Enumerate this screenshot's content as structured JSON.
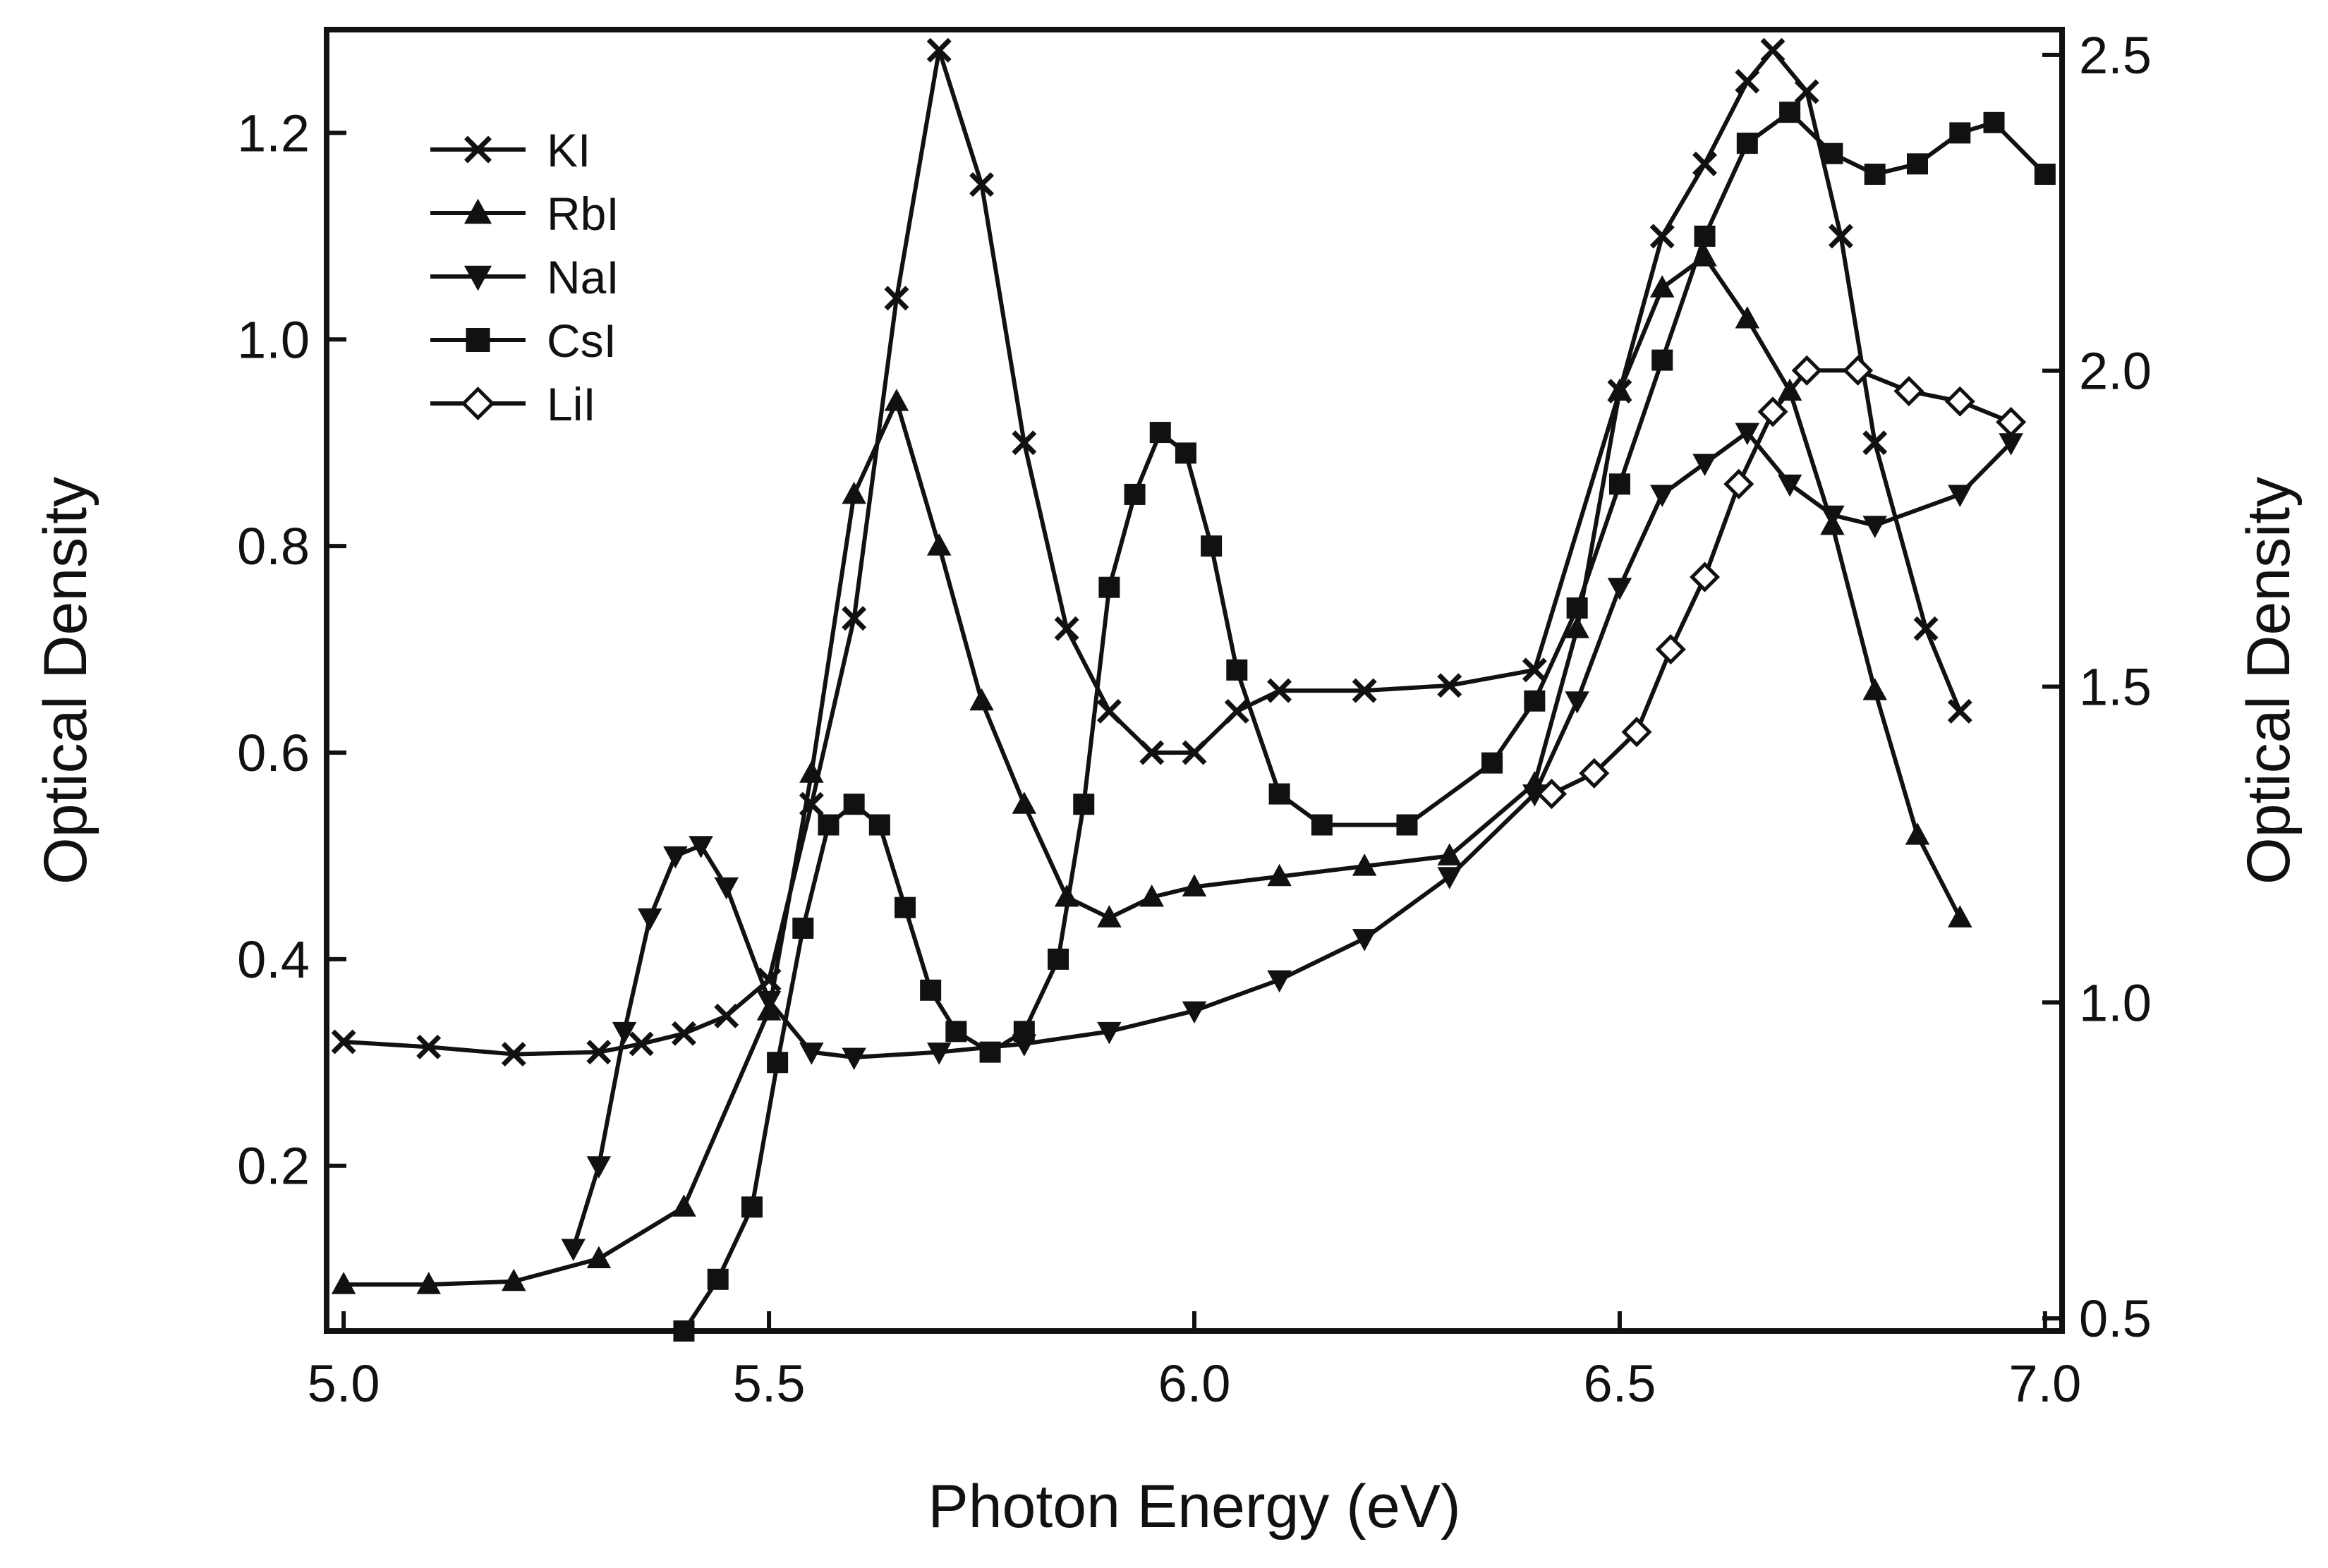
{
  "chart_data": {
    "type": "line",
    "xlabel": "Photon Energy (eV)",
    "ylabel_left": "Optical Density",
    "ylabel_right": "Optical Density",
    "xlim": [
      4.98,
      7.02
    ],
    "ylim_left": [
      0.04,
      1.3
    ],
    "ylim_right": [
      0.48,
      2.54
    ],
    "xticks": [
      {
        "value": 5.0,
        "label": "5.0"
      },
      {
        "value": 5.5,
        "label": "5.5"
      },
      {
        "value": 6.0,
        "label": "6.0"
      },
      {
        "value": 6.5,
        "label": "6.5"
      },
      {
        "value": 7.0,
        "label": "7.0"
      }
    ],
    "yticks_left": [
      {
        "value": 0.2,
        "label": "0.2"
      },
      {
        "value": 0.4,
        "label": "0.4"
      },
      {
        "value": 0.6,
        "label": "0.6"
      },
      {
        "value": 0.8,
        "label": "0.8"
      },
      {
        "value": 1.0,
        "label": "1.0"
      },
      {
        "value": 1.2,
        "label": "1.2"
      }
    ],
    "yticks_right": [
      {
        "value": 0.5,
        "label": "0.5"
      },
      {
        "value": 1.0,
        "label": "1.0"
      },
      {
        "value": 1.5,
        "label": "1.5"
      },
      {
        "value": 2.0,
        "label": "2.0"
      },
      {
        "value": 2.5,
        "label": "2.5"
      }
    ],
    "legend_position": "top-left",
    "series": [
      {
        "name": "KI",
        "marker": "x",
        "axis": "left",
        "color": "#111111",
        "points": [
          [
            5.0,
            0.32
          ],
          [
            5.1,
            0.315
          ],
          [
            5.2,
            0.308
          ],
          [
            5.3,
            0.31
          ],
          [
            5.35,
            0.318
          ],
          [
            5.4,
            0.328
          ],
          [
            5.45,
            0.345
          ],
          [
            5.5,
            0.38
          ],
          [
            5.55,
            0.55
          ],
          [
            5.6,
            0.73
          ],
          [
            5.65,
            1.04
          ],
          [
            5.7,
            1.28
          ],
          [
            5.75,
            1.15
          ],
          [
            5.8,
            0.9
          ],
          [
            5.85,
            0.72
          ],
          [
            5.9,
            0.64
          ],
          [
            5.95,
            0.6
          ],
          [
            6.0,
            0.6
          ],
          [
            6.05,
            0.64
          ],
          [
            6.1,
            0.66
          ],
          [
            6.2,
            0.66
          ],
          [
            6.3,
            0.665
          ],
          [
            6.4,
            0.68
          ],
          [
            6.5,
            0.95
          ],
          [
            6.55,
            1.1
          ],
          [
            6.6,
            1.17
          ],
          [
            6.65,
            1.25
          ],
          [
            6.68,
            1.28
          ],
          [
            6.72,
            1.24
          ],
          [
            6.76,
            1.1
          ],
          [
            6.8,
            0.9
          ],
          [
            6.86,
            0.72
          ],
          [
            6.9,
            0.64
          ]
        ]
      },
      {
        "name": "RbI",
        "marker": "triangle-up",
        "axis": "left",
        "color": "#111111",
        "points": [
          [
            5.0,
            0.085
          ],
          [
            5.1,
            0.085
          ],
          [
            5.2,
            0.088
          ],
          [
            5.3,
            0.11
          ],
          [
            5.4,
            0.16
          ],
          [
            5.5,
            0.35
          ],
          [
            5.55,
            0.58
          ],
          [
            5.6,
            0.85
          ],
          [
            5.65,
            0.94
          ],
          [
            5.7,
            0.8
          ],
          [
            5.75,
            0.65
          ],
          [
            5.8,
            0.55
          ],
          [
            5.85,
            0.46
          ],
          [
            5.9,
            0.44
          ],
          [
            5.95,
            0.46
          ],
          [
            6.0,
            0.47
          ],
          [
            6.1,
            0.48
          ],
          [
            6.2,
            0.49
          ],
          [
            6.3,
            0.5
          ],
          [
            6.4,
            0.57
          ],
          [
            6.45,
            0.72
          ],
          [
            6.5,
            0.95
          ],
          [
            6.55,
            1.05
          ],
          [
            6.6,
            1.08
          ],
          [
            6.65,
            1.02
          ],
          [
            6.7,
            0.95
          ],
          [
            6.75,
            0.82
          ],
          [
            6.8,
            0.66
          ],
          [
            6.85,
            0.52
          ],
          [
            6.9,
            0.44
          ]
        ]
      },
      {
        "name": "NaI",
        "marker": "triangle-down",
        "axis": "left",
        "color": "#111111",
        "points": [
          [
            5.27,
            0.12
          ],
          [
            5.3,
            0.2
          ],
          [
            5.33,
            0.33
          ],
          [
            5.36,
            0.44
          ],
          [
            5.39,
            0.5
          ],
          [
            5.42,
            0.51
          ],
          [
            5.45,
            0.47
          ],
          [
            5.5,
            0.36
          ],
          [
            5.55,
            0.31
          ],
          [
            5.6,
            0.305
          ],
          [
            5.7,
            0.31
          ],
          [
            5.8,
            0.318
          ],
          [
            5.9,
            0.33
          ],
          [
            6.0,
            0.35
          ],
          [
            6.1,
            0.38
          ],
          [
            6.2,
            0.42
          ],
          [
            6.3,
            0.48
          ],
          [
            6.4,
            0.56
          ],
          [
            6.45,
            0.65
          ],
          [
            6.5,
            0.76
          ],
          [
            6.55,
            0.85
          ],
          [
            6.6,
            0.88
          ],
          [
            6.65,
            0.91
          ],
          [
            6.7,
            0.86
          ],
          [
            6.75,
            0.83
          ],
          [
            6.8,
            0.82
          ],
          [
            6.9,
            0.85
          ],
          [
            6.96,
            0.9
          ]
        ]
      },
      {
        "name": "CsI",
        "marker": "square",
        "axis": "left",
        "color": "#111111",
        "points": [
          [
            5.4,
            0.04
          ],
          [
            5.44,
            0.09
          ],
          [
            5.48,
            0.16
          ],
          [
            5.51,
            0.3
          ],
          [
            5.54,
            0.43
          ],
          [
            5.57,
            0.53
          ],
          [
            5.6,
            0.55
          ],
          [
            5.63,
            0.53
          ],
          [
            5.66,
            0.45
          ],
          [
            5.69,
            0.37
          ],
          [
            5.72,
            0.33
          ],
          [
            5.76,
            0.31
          ],
          [
            5.8,
            0.33
          ],
          [
            5.84,
            0.4
          ],
          [
            5.87,
            0.55
          ],
          [
            5.9,
            0.76
          ],
          [
            5.93,
            0.85
          ],
          [
            5.96,
            0.91
          ],
          [
            5.99,
            0.89
          ],
          [
            6.02,
            0.8
          ],
          [
            6.05,
            0.68
          ],
          [
            6.1,
            0.56
          ],
          [
            6.15,
            0.53
          ],
          [
            6.25,
            0.53
          ],
          [
            6.35,
            0.59
          ],
          [
            6.4,
            0.65
          ],
          [
            6.45,
            0.74
          ],
          [
            6.5,
            0.86
          ],
          [
            6.55,
            0.98
          ],
          [
            6.6,
            1.1
          ],
          [
            6.65,
            1.19
          ],
          [
            6.7,
            1.22
          ],
          [
            6.75,
            1.18
          ],
          [
            6.8,
            1.16
          ],
          [
            6.85,
            1.17
          ],
          [
            6.9,
            1.2
          ],
          [
            6.94,
            1.21
          ],
          [
            7.0,
            1.16
          ]
        ]
      },
      {
        "name": "LiI",
        "marker": "diamond-open",
        "axis": "left",
        "color": "#111111",
        "points": [
          [
            6.42,
            0.56
          ],
          [
            6.47,
            0.58
          ],
          [
            6.52,
            0.62
          ],
          [
            6.56,
            0.7
          ],
          [
            6.6,
            0.77
          ],
          [
            6.64,
            0.86
          ],
          [
            6.68,
            0.93
          ],
          [
            6.72,
            0.97
          ],
          [
            6.78,
            0.97
          ],
          [
            6.84,
            0.95
          ],
          [
            6.9,
            0.94
          ],
          [
            6.96,
            0.92
          ]
        ]
      }
    ]
  }
}
